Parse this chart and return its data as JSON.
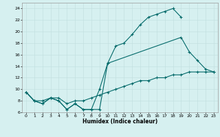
{
  "line1_x": [
    0,
    1,
    2,
    3,
    4,
    5,
    6,
    7,
    8,
    9,
    10,
    11,
    12,
    13,
    14,
    15,
    16,
    17,
    18,
    19
  ],
  "line1_y": [
    9.5,
    8.0,
    7.5,
    8.5,
    8.0,
    6.5,
    7.5,
    6.5,
    6.5,
    6.5,
    14.5,
    17.5,
    18.0,
    19.5,
    21.2,
    22.5,
    23.0,
    23.5,
    24.0,
    22.5
  ],
  "line2_x": [
    0,
    1,
    2,
    3,
    4,
    5,
    6,
    7,
    8,
    9,
    10,
    19,
    20,
    21,
    22,
    23
  ],
  "line2_y": [
    9.5,
    8.0,
    7.5,
    8.5,
    8.0,
    6.5,
    7.5,
    6.5,
    6.5,
    10.0,
    14.5,
    19.0,
    16.5,
    15.0,
    13.5,
    13.0
  ],
  "line3_x": [
    0,
    1,
    2,
    3,
    4,
    5,
    6,
    7,
    8,
    9,
    10,
    11,
    12,
    13,
    14,
    15,
    16,
    17,
    18,
    19,
    20,
    21,
    22,
    23
  ],
  "line3_y": [
    9.5,
    8.0,
    8.0,
    8.5,
    8.5,
    7.5,
    8.0,
    8.0,
    8.5,
    9.0,
    9.5,
    10.0,
    10.5,
    11.0,
    11.5,
    11.5,
    12.0,
    12.0,
    12.5,
    12.5,
    13.0,
    13.0,
    13.0,
    13.0
  ],
  "xlabel": "Humidex (Indice chaleur)",
  "xticks": [
    0,
    1,
    2,
    3,
    4,
    5,
    6,
    7,
    8,
    9,
    10,
    11,
    12,
    13,
    14,
    15,
    16,
    17,
    18,
    19,
    20,
    21,
    22,
    23
  ],
  "yticks": [
    6,
    8,
    10,
    12,
    14,
    16,
    18,
    20,
    22,
    24
  ],
  "ylim": [
    6,
    25
  ],
  "xlim": [
    -0.5,
    23.5
  ],
  "bg_color": "#d6f0f0",
  "grid_color": "#c0dede",
  "line_color": "#006868",
  "title_fontsize": 8
}
